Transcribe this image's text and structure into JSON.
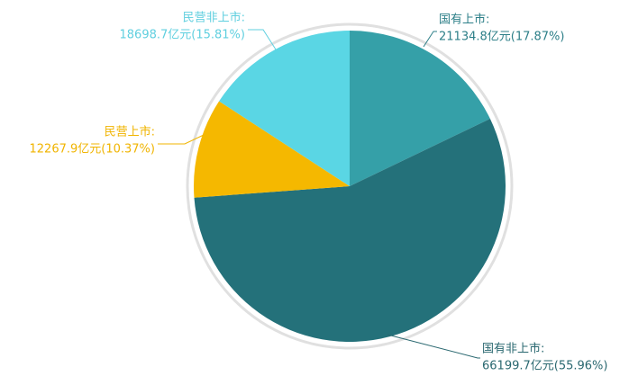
{
  "chart_data": {
    "type": "pie",
    "categories": [
      "国有上市:",
      "国有非上市:",
      "民营上市:",
      "民营非上市:"
    ],
    "values": [
      21134.8,
      66199.7,
      12267.9,
      18698.7
    ],
    "value_labels": [
      "21134.8亿元(17.87%)",
      "66199.7亿元(55.96%)",
      "12267.9亿元(10.37%)",
      "18698.7亿元(15.81%)"
    ],
    "colors": [
      "#35a0a8",
      "#24717a",
      "#f5b800",
      "#5ad6e4"
    ]
  }
}
